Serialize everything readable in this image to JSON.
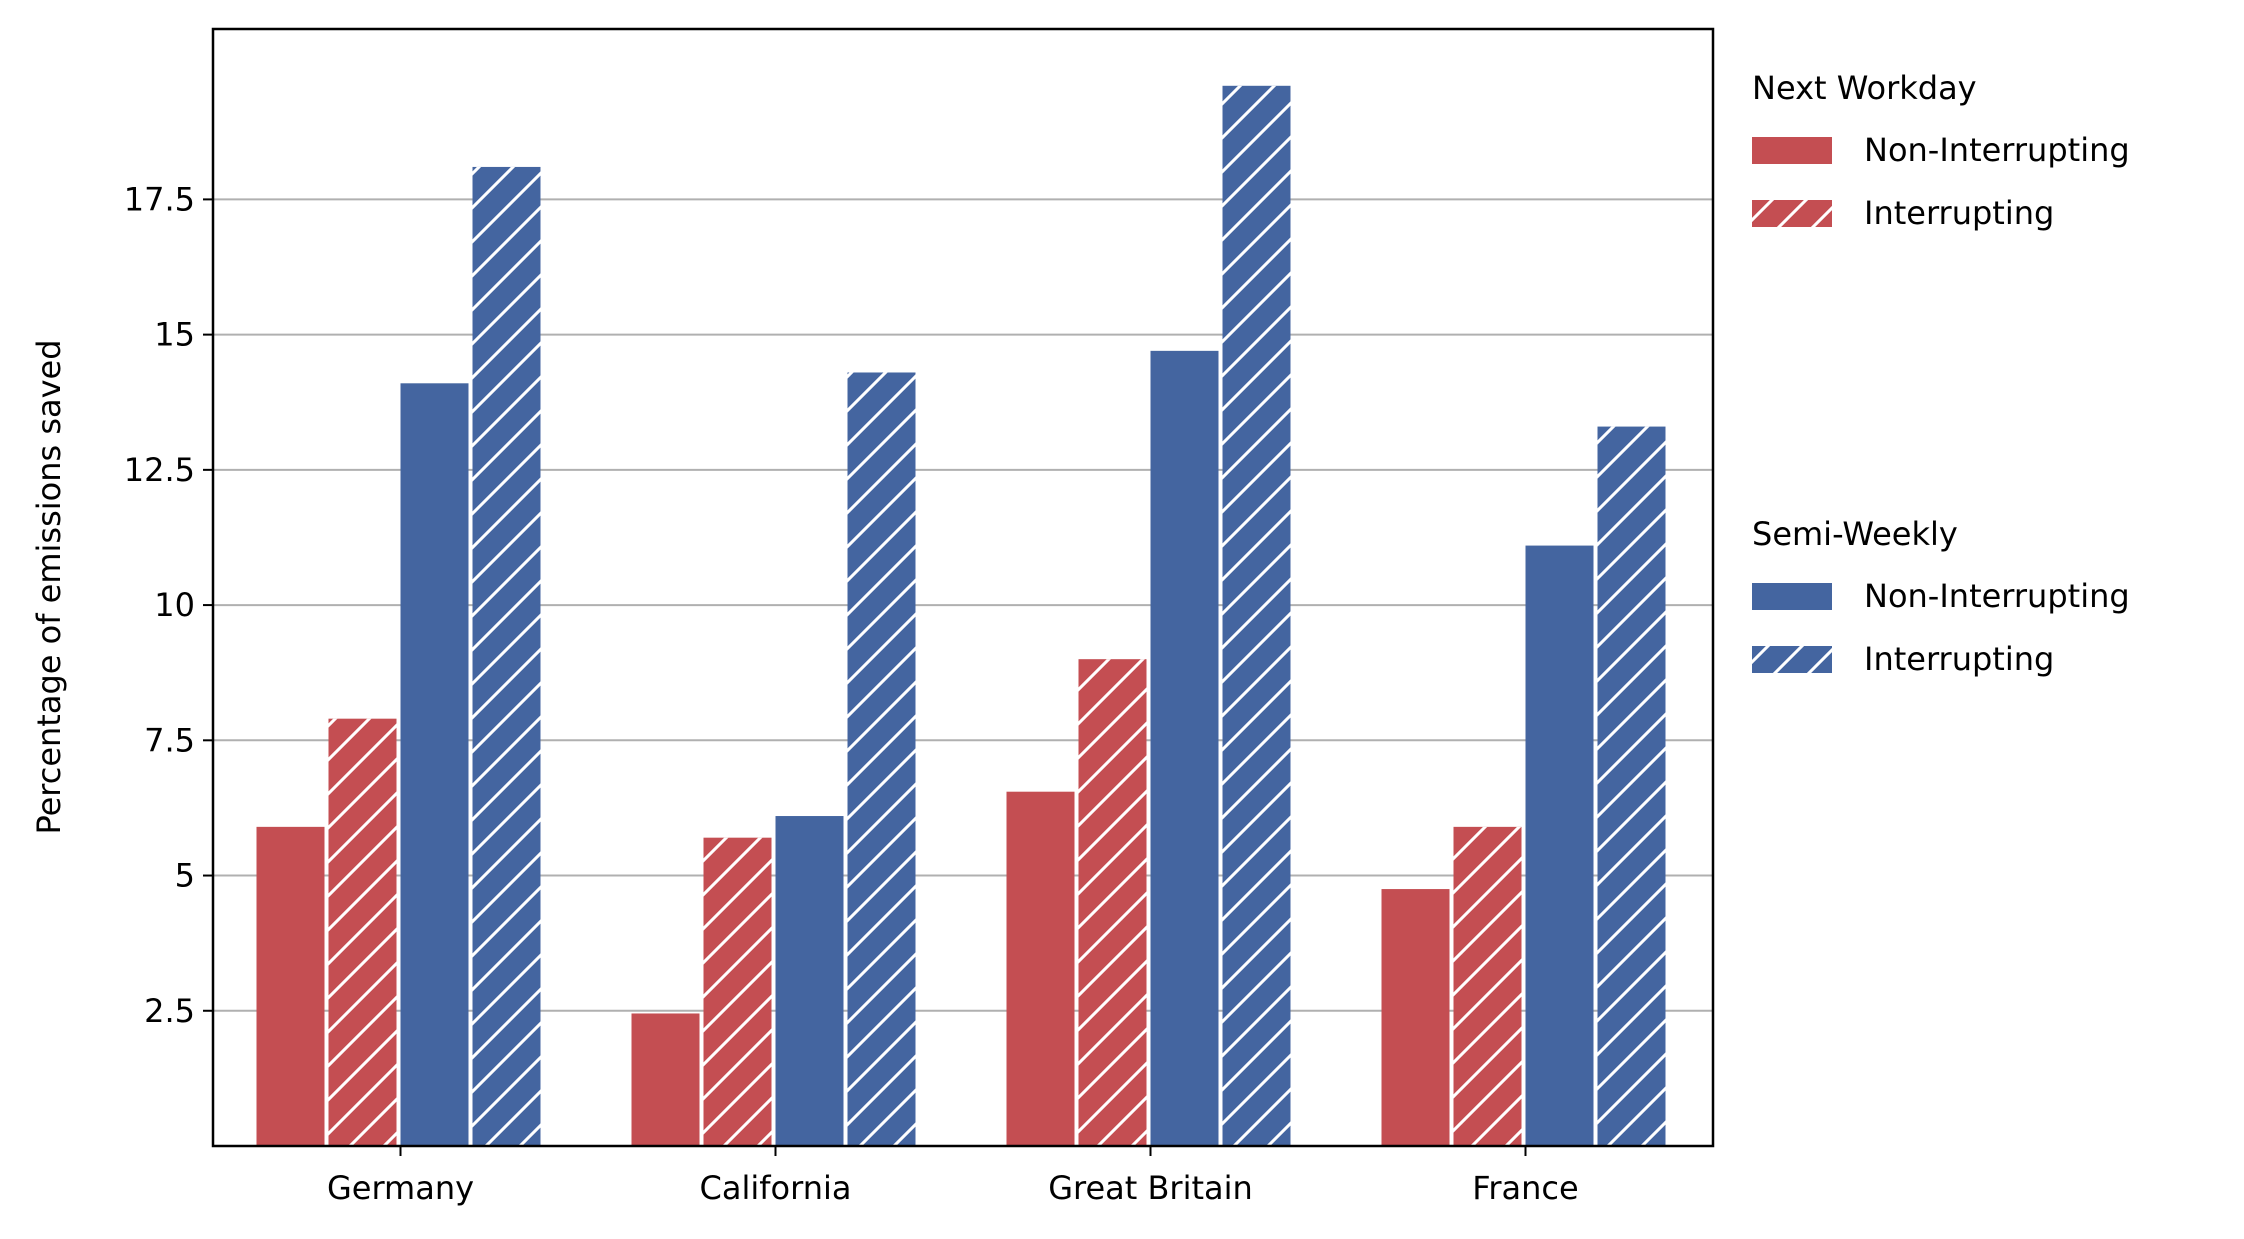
{
  "chart_data": {
    "type": "bar",
    "title": "",
    "xlabel": "",
    "ylabel": "Percentage of emissions saved",
    "categories": [
      "Germany",
      "California",
      "Great Britain",
      "France"
    ],
    "ylim": [
      0,
      20.65
    ],
    "yticks": [
      2.5,
      5,
      7.5,
      10,
      12.5,
      15,
      17.5
    ],
    "ytick_labels": [
      "2.5",
      "5",
      "7.5",
      "10",
      "12.5",
      "15",
      "17.5"
    ],
    "grid": "y",
    "legend_position": "outside-right",
    "series": [
      {
        "name": "Non-Interrupting",
        "group": "Next Workday",
        "color": "#c44e52",
        "hatch": false,
        "values": [
          5.9,
          2.45,
          6.55,
          4.75
        ]
      },
      {
        "name": "Interrupting",
        "group": "Next Workday",
        "color": "#c44e52",
        "hatch": true,
        "values": [
          7.9,
          5.7,
          9.0,
          5.9
        ]
      },
      {
        "name": "Non-Interrupting",
        "group": "Semi-Weekly",
        "color": "#4465a0",
        "hatch": false,
        "values": [
          14.1,
          6.1,
          14.7,
          11.1
        ]
      },
      {
        "name": "Interrupting",
        "group": "Semi-Weekly",
        "color": "#4465a0",
        "hatch": true,
        "values": [
          18.1,
          14.3,
          19.6,
          13.3
        ]
      }
    ],
    "legend_groups": [
      {
        "title": "Next Workday",
        "color": "#c44e52",
        "entries": [
          "Non-Interrupting",
          "Interrupting"
        ]
      },
      {
        "title": "Semi-Weekly",
        "color": "#4465a0",
        "entries": [
          "Non-Interrupting",
          "Interrupting"
        ]
      }
    ]
  }
}
